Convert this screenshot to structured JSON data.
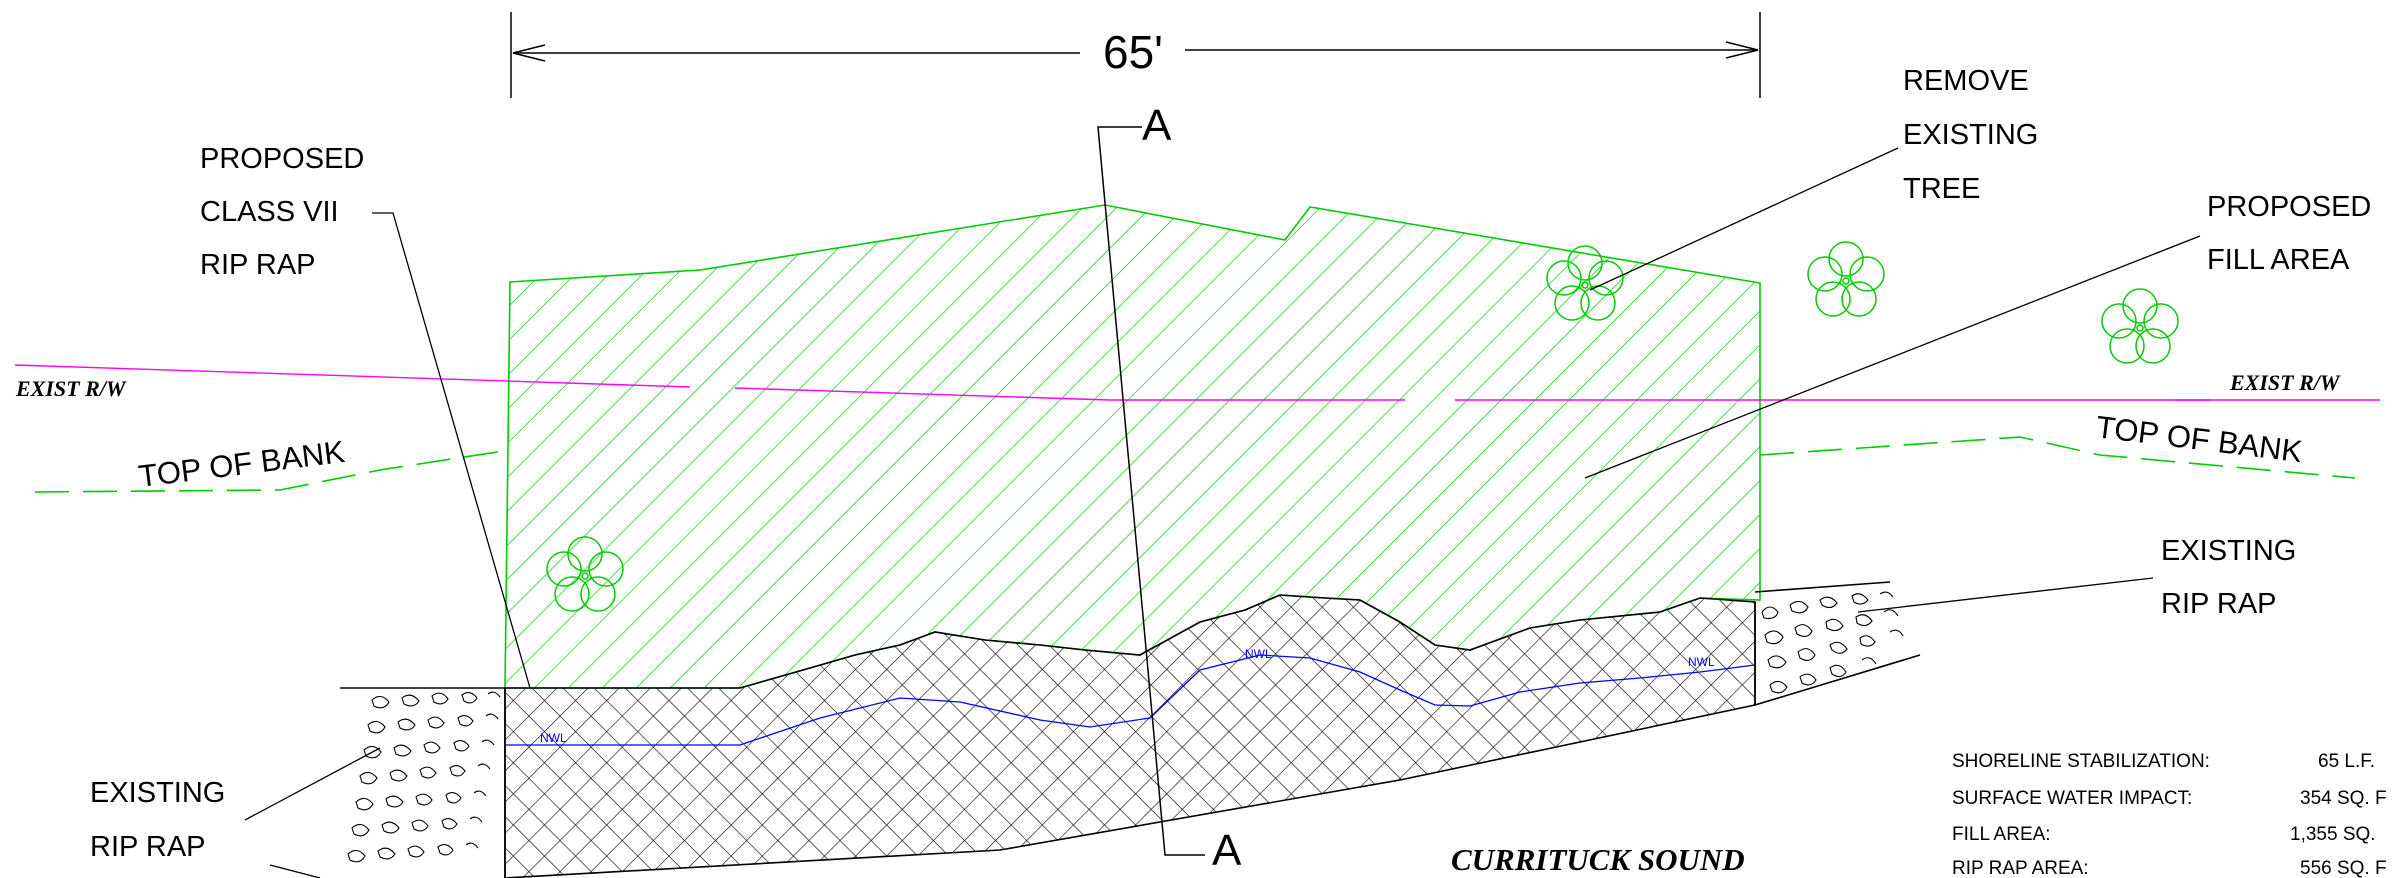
{
  "dimension": {
    "text": "65'"
  },
  "section_marks": {
    "top": "A",
    "bottom": "A"
  },
  "labels": {
    "proposed_riprap": [
      "PROPOSED",
      "CLASS VII",
      "RIP RAP"
    ],
    "remove_tree": [
      "REMOVE",
      "EXISTING",
      "TREE"
    ],
    "proposed_fill": [
      "PROPOSED",
      "FILL AREA"
    ],
    "existing_riprap_right": [
      "EXISTING",
      "RIP RAP"
    ],
    "existing_riprap_left": [
      "EXISTING",
      "RIP RAP"
    ],
    "exist_rw_left": "EXIST R/W",
    "exist_rw_right": "EXIST R/W",
    "top_of_bank_left": "TOP OF BANK",
    "top_of_bank_right": "TOP OF BANK",
    "nwl": "NWL",
    "water_body": "CURRITUCK SOUND"
  },
  "summary_table": [
    {
      "label": "SHORELINE STABILIZATION:",
      "value": "65 L.F."
    },
    {
      "label": "SURFACE WATER IMPACT:",
      "value": "354 SQ. F"
    },
    {
      "label": "FILL AREA:",
      "value": "1,355 SQ."
    },
    {
      "label": "RIP RAP AREA:",
      "value": "556 SQ. F"
    }
  ],
  "colors": {
    "fill_hatch": "#00cc00",
    "right_of_way": "#ff00ff",
    "water_line": "#0000ff",
    "line": "#000000"
  }
}
